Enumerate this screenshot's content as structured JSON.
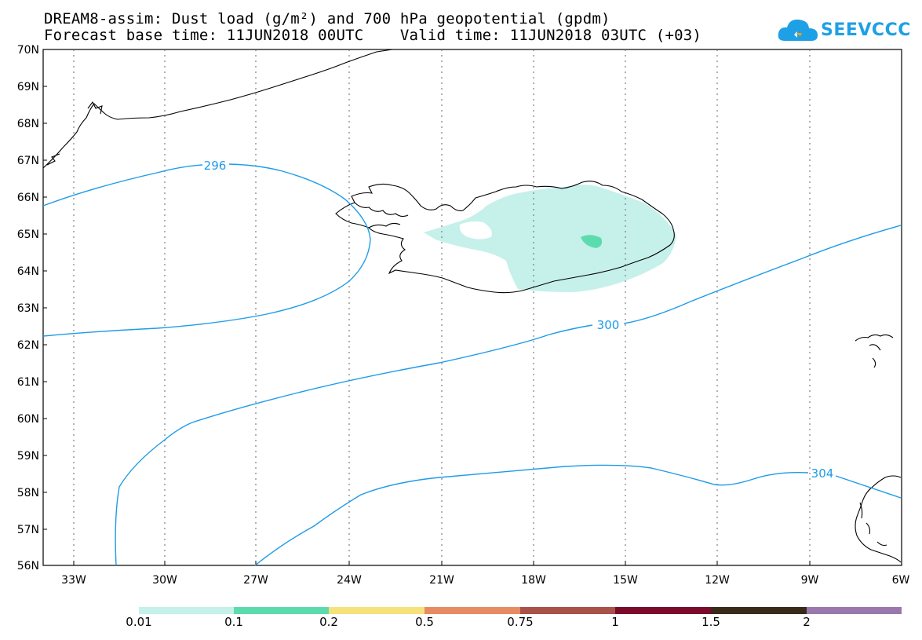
{
  "header": {
    "title_line1": "DREAM8-assim: Dust load (g/m²) and 700 hPa geopotential (gpdm)",
    "title_line2": "Forecast base time: 11JUN2018 00UTC    Valid time: 11JUN2018 03UTC (+03)"
  },
  "logo": {
    "text": "SEEVCCC",
    "icon": "cloud-icon",
    "color": "#1ea0e6"
  },
  "map": {
    "lon_range": [
      -34.0,
      -6.0
    ],
    "lat_range": [
      56.0,
      70.0
    ],
    "lat_labels": [
      "70N",
      "69N",
      "68N",
      "67N",
      "66N",
      "65N",
      "64N",
      "63N",
      "62N",
      "61N",
      "60N",
      "59N",
      "58N",
      "57N",
      "56N"
    ],
    "lon_labels": [
      "33W",
      "30W",
      "27W",
      "24W",
      "21W",
      "18W",
      "15W",
      "12W",
      "9W",
      "6W"
    ],
    "contour_color": "#1e9be8",
    "contour_labels": [
      "296",
      "300",
      "304"
    ],
    "dust_fill_light": "#c6f0ea",
    "dust_fill_mid": "#5cdcae"
  },
  "colorbar": {
    "labels": [
      "0.01",
      "0.1",
      "0.2",
      "0.5",
      "0.75",
      "1",
      "1.5",
      "2"
    ],
    "colors": [
      "#c6f0ea",
      "#5cdcae",
      "#f5e27a",
      "#e88a62",
      "#a8524a",
      "#7a0a2a",
      "#3a2a1a",
      "#9a78ae"
    ]
  }
}
